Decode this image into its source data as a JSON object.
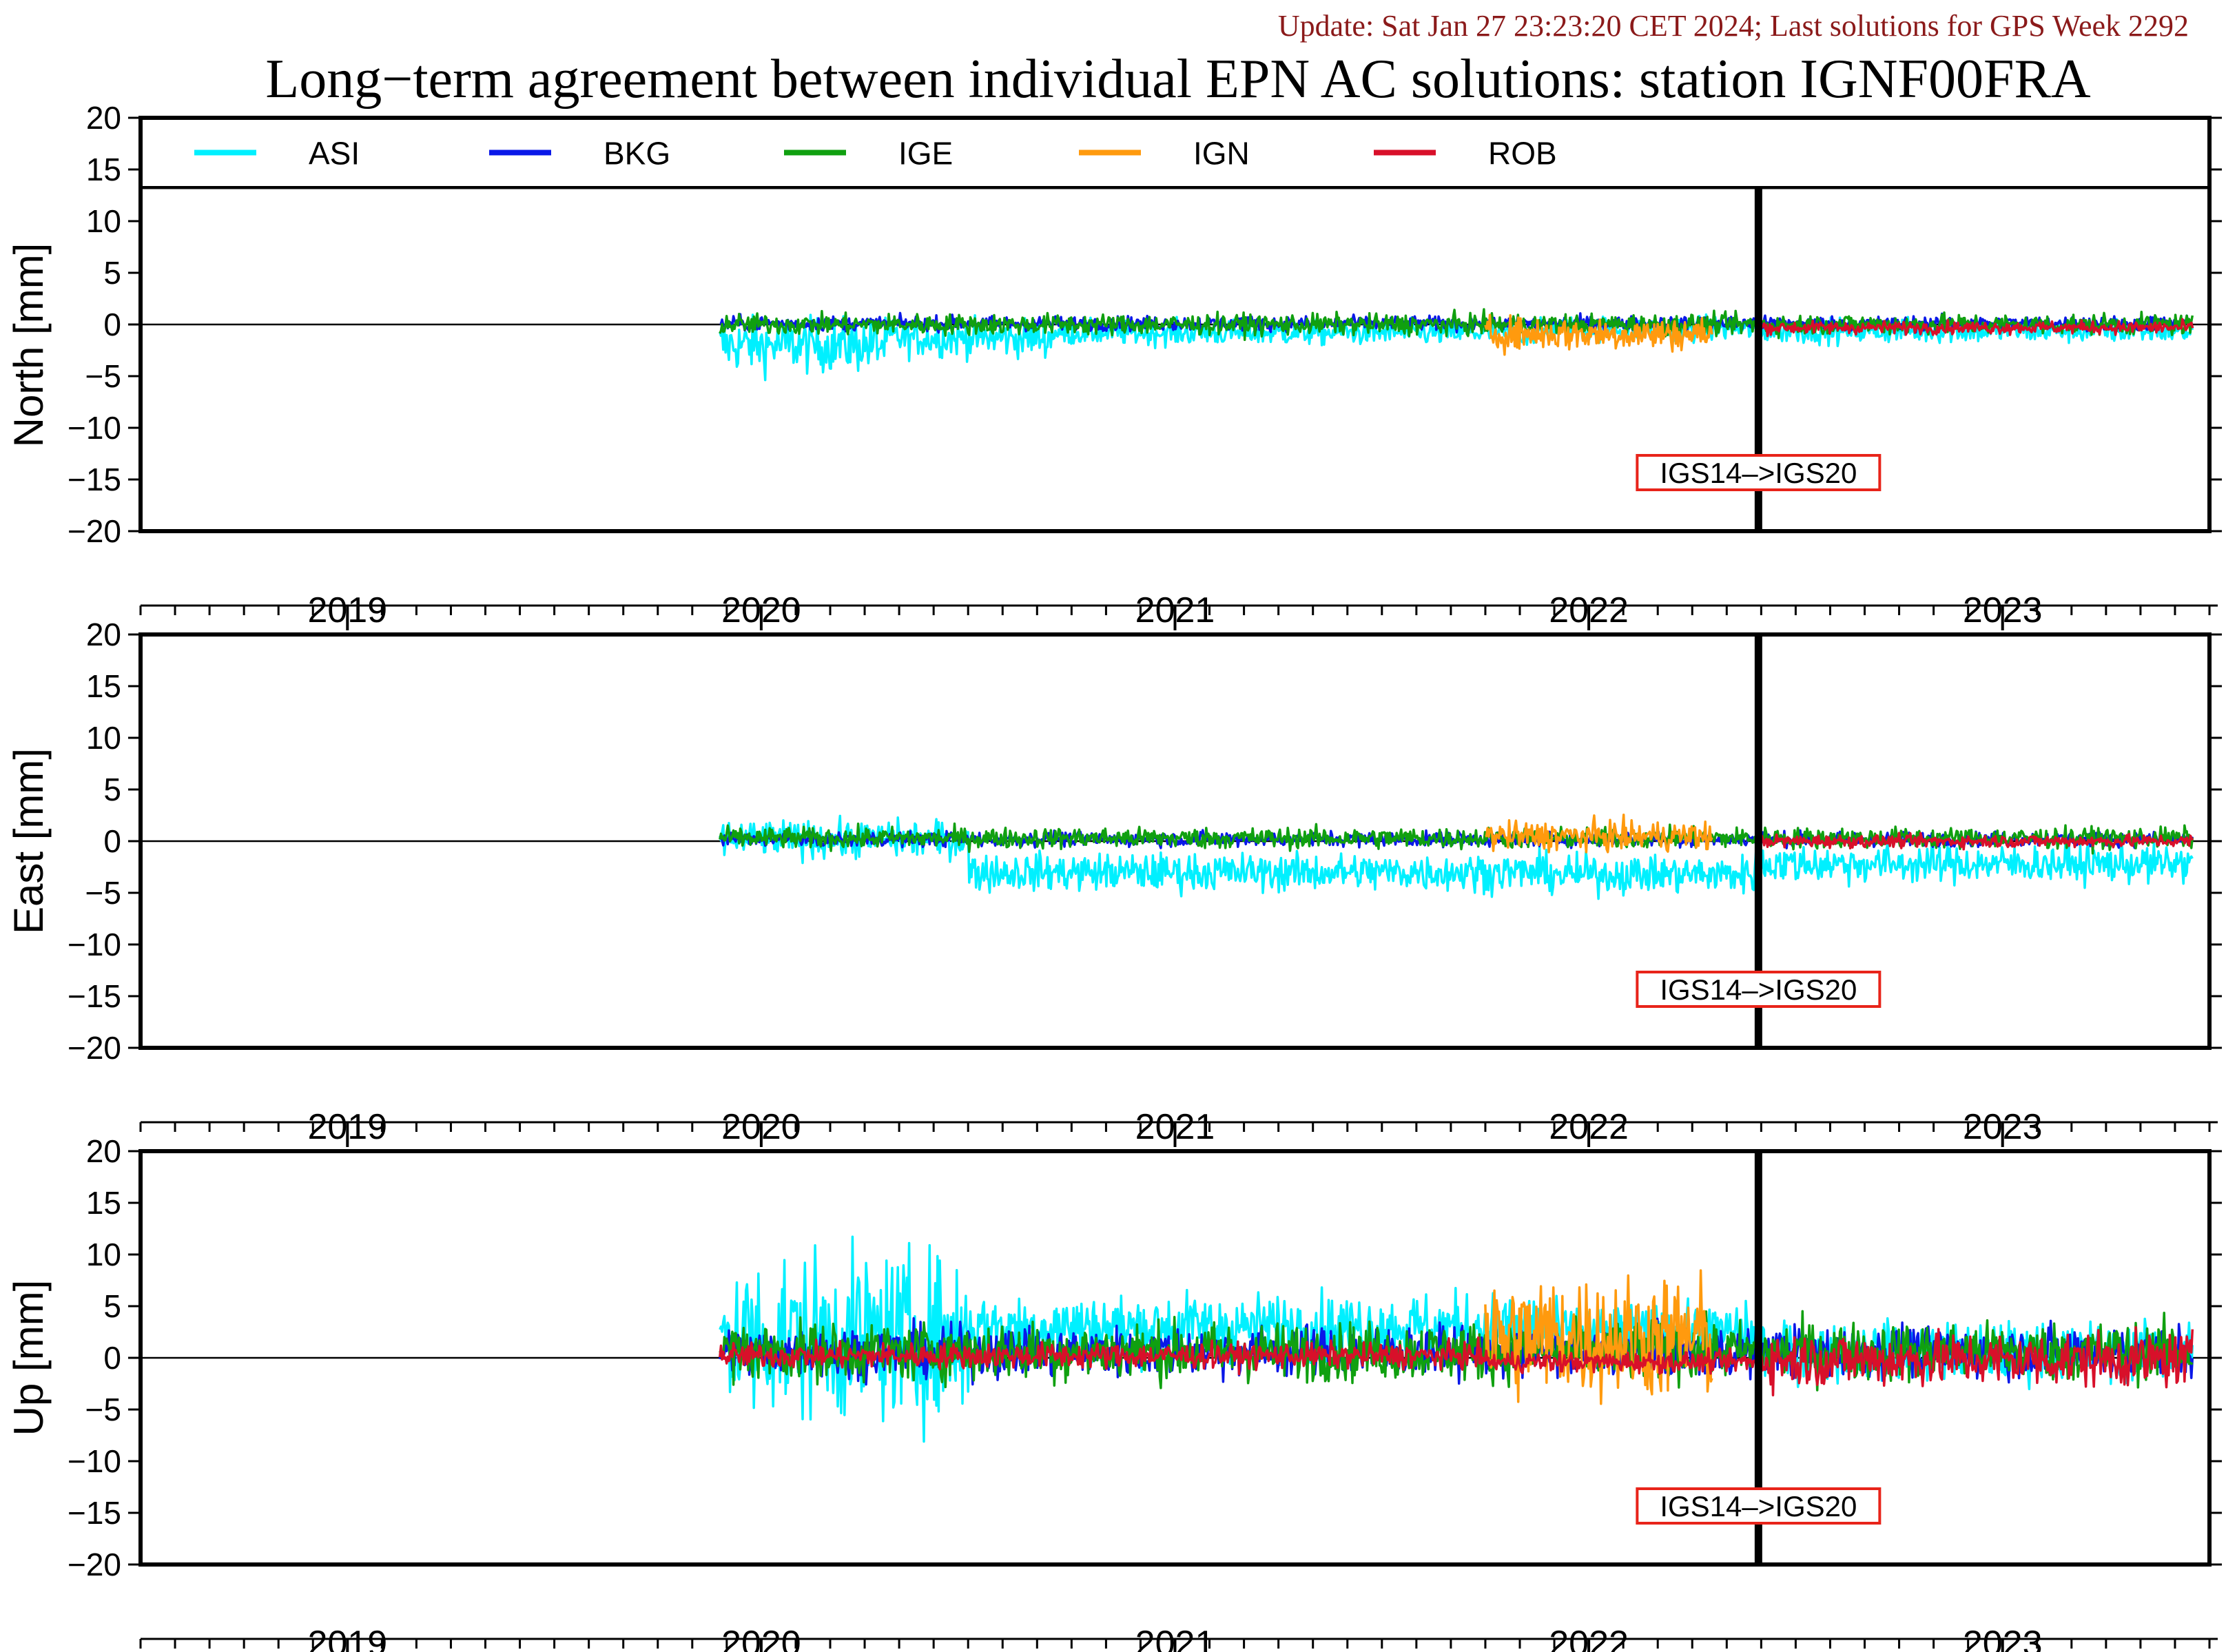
{
  "header": {
    "update_text": "Update: Sat Jan 27 23:23:20 CET 2024; Last solutions for GPS Week 2292",
    "title": "Long−term agreement between individual EPN AC solutions: station IGNF00FRA"
  },
  "colors": {
    "update_text": "#8b1a1a",
    "reference_box": "#e8241a"
  },
  "chart_data": {
    "type": "line",
    "x_unit": "decimal year",
    "xlim": [
      2018.5,
      2023.5
    ],
    "ylim": [
      -20,
      20
    ],
    "yticks": [
      -20,
      -15,
      -10,
      -5,
      0,
      5,
      10,
      15,
      20
    ],
    "year_labels": [
      "2019",
      "2020",
      "2021",
      "2022",
      "2023"
    ],
    "grid": false,
    "legend": {
      "placement": "top inside first panel",
      "entries": [
        {
          "name": "ASI",
          "color": "#00f0ff"
        },
        {
          "name": "BKG",
          "color": "#0a18e8"
        },
        {
          "name": "IGE",
          "color": "#10a010"
        },
        {
          "name": "IGN",
          "color": "#ff9a0e"
        },
        {
          "name": "ROB",
          "color": "#d8102a"
        }
      ]
    },
    "reference_frame_change": {
      "x": 2022.41,
      "label": "IGS14–>IGS20"
    },
    "data_start": 2019.9,
    "data_end": 2023.46,
    "panels": [
      {
        "ylabel": "North [mm]",
        "series": [
          {
            "name": "ASI",
            "color": "#00f0ff",
            "start": 2019.9,
            "end": 2023.46,
            "segments": [
              [
                2019.9,
                -2.0,
                1.3
              ],
              [
                2020.3,
                -1.3,
                0.9
              ],
              [
                2020.7,
                -0.8,
                0.6
              ],
              [
                2021.9,
                -0.4,
                0.6
              ],
              [
                2022.4,
                -0.6,
                0.6
              ]
            ]
          },
          {
            "name": "BKG",
            "color": "#0a18e8",
            "start": 2019.9,
            "end": 2023.46,
            "segments": [
              [
                2019.9,
                0.1,
                0.35
              ]
            ]
          },
          {
            "name": "IGE",
            "color": "#10a010",
            "start": 2019.9,
            "end": 2023.46,
            "segments": [
              [
                2019.9,
                0.0,
                0.5
              ]
            ]
          },
          {
            "name": "IGN",
            "color": "#ff9a0e",
            "start": 2021.75,
            "end": 2022.3,
            "segments": [
              [
                2021.75,
                -0.9,
                0.8
              ]
            ]
          },
          {
            "name": "ROB",
            "color": "#d8102a",
            "start": 2022.41,
            "end": 2023.46,
            "segments": [
              [
                2022.41,
                -0.3,
                0.3
              ]
            ]
          }
        ]
      },
      {
        "ylabel": "East [mm]",
        "series": [
          {
            "name": "ASI",
            "color": "#00f0ff",
            "start": 2019.9,
            "end": 2023.46,
            "segments": [
              [
                2019.9,
                0.2,
                0.9
              ],
              [
                2020.5,
                -3.0,
                0.9
              ],
              [
                2021.9,
                -3.2,
                0.9
              ],
              [
                2022.4,
                -2.2,
                0.9
              ]
            ]
          },
          {
            "name": "BKG",
            "color": "#0a18e8",
            "start": 2019.9,
            "end": 2023.46,
            "segments": [
              [
                2019.9,
                0.2,
                0.35
              ]
            ]
          },
          {
            "name": "IGE",
            "color": "#10a010",
            "start": 2019.9,
            "end": 2023.46,
            "segments": [
              [
                2019.9,
                0.3,
                0.5
              ]
            ]
          },
          {
            "name": "IGN",
            "color": "#ff9a0e",
            "start": 2021.75,
            "end": 2022.3,
            "segments": [
              [
                2021.75,
                0.5,
                0.7
              ]
            ]
          },
          {
            "name": "ROB",
            "color": "#d8102a",
            "start": 2022.41,
            "end": 2023.46,
            "segments": [
              [
                2022.41,
                0.0,
                0.3
              ]
            ]
          }
        ]
      },
      {
        "ylabel": "Up [mm]",
        "series": [
          {
            "name": "ASI",
            "color": "#00f0ff",
            "start": 2019.9,
            "end": 2023.46,
            "segments": [
              [
                2019.9,
                2.0,
                4.0
              ],
              [
                2020.5,
                3.0,
                1.6
              ],
              [
                2021.9,
                2.5,
                1.3
              ],
              [
                2022.4,
                0.6,
                1.4
              ]
            ]
          },
          {
            "name": "BKG",
            "color": "#0a18e8",
            "start": 2019.9,
            "end": 2023.46,
            "segments": [
              [
                2019.9,
                0.6,
                1.2
              ]
            ]
          },
          {
            "name": "IGE",
            "color": "#10a010",
            "start": 2019.9,
            "end": 2023.46,
            "segments": [
              [
                2019.9,
                0.6,
                1.4
              ]
            ]
          },
          {
            "name": "IGN",
            "color": "#ff9a0e",
            "start": 2021.75,
            "end": 2022.3,
            "segments": [
              [
                2021.75,
                2.0,
                3.0
              ]
            ]
          },
          {
            "name": "ROB",
            "color": "#d8102a",
            "start": 2019.9,
            "end": 2023.46,
            "segments": [
              [
                2019.9,
                0.2,
                0.6
              ],
              [
                2021.75,
                -0.4,
                0.5
              ],
              [
                2022.41,
                -0.2,
                1.3
              ]
            ]
          }
        ]
      }
    ]
  }
}
